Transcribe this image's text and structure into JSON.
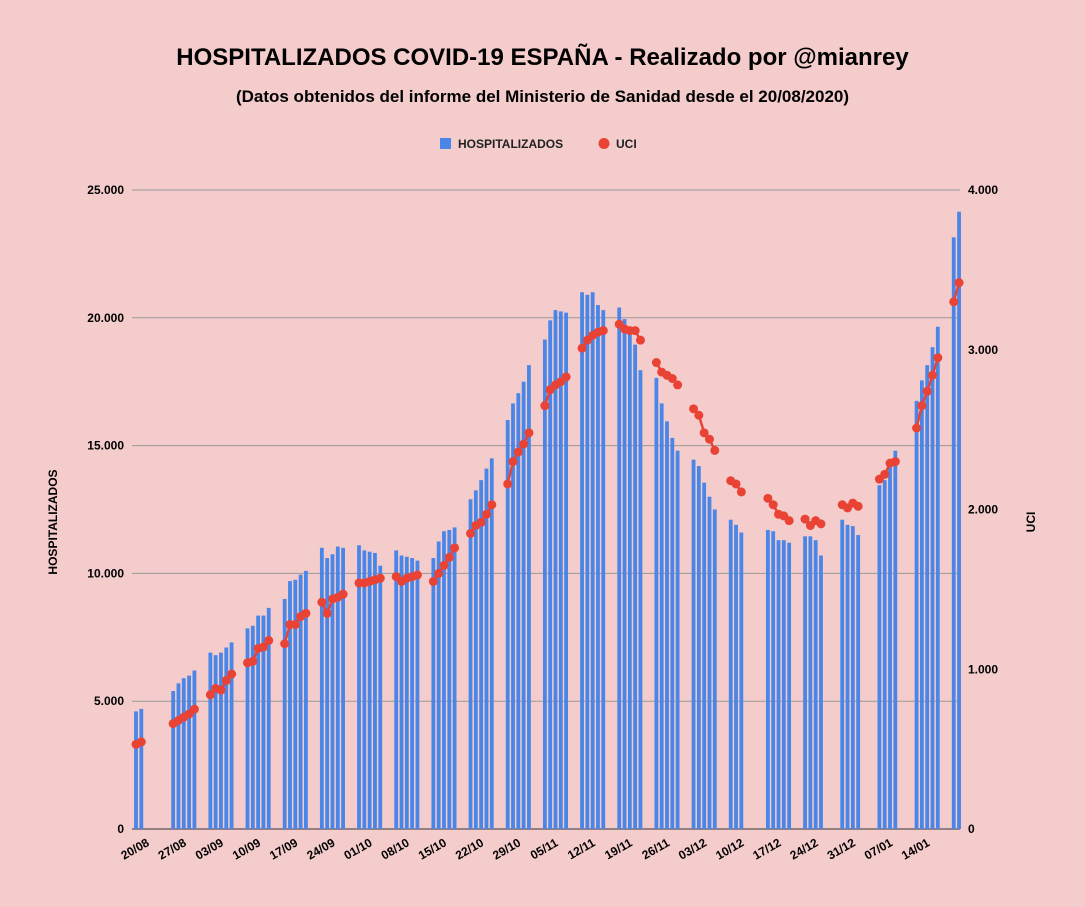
{
  "chart_data": {
    "type": "bar",
    "title": "HOSPITALIZADOS COVID-19 ESPAÑA - Realizado por @mianrey",
    "subtitle": "(Datos obtenidos del informe del Ministerio de Sanidad desde el 20/08/2020)",
    "ylabel_left": "HOSPITALIZADOS",
    "ylabel_right": "UCI",
    "ylim_left": [
      0,
      25000
    ],
    "ylim_right": [
      0,
      4000
    ],
    "yticks_left": [
      "0",
      "5.000",
      "10.000",
      "15.000",
      "20.000",
      "25.000"
    ],
    "yticks_right": [
      "0",
      "1.000",
      "2.000",
      "3.000",
      "4.000"
    ],
    "xtick_labels": [
      "20/08",
      "27/08",
      "03/09",
      "10/09",
      "17/09",
      "24/09",
      "01/10",
      "08/10",
      "15/10",
      "22/10",
      "29/10",
      "05/11",
      "12/11",
      "19/11",
      "26/11",
      "03/12",
      "10/12",
      "17/12",
      "24/12",
      "31/12",
      "07/01",
      "14/01"
    ],
    "legend_position": "top",
    "grid": true,
    "colors": {
      "bar": "#4a86e8",
      "line": "#e94335",
      "background": "#f4cccc",
      "grid": "#999999"
    },
    "series": [
      {
        "name": "HOSPITALIZADOS",
        "kind": "bar",
        "axis": "left"
      },
      {
        "name": "UCI",
        "kind": "line",
        "axis": "right"
      }
    ],
    "weeks": [
      {
        "hosp": [
          4600,
          4700,
          null,
          null,
          null
        ],
        "uci": [
          530,
          545,
          null,
          null,
          null
        ]
      },
      {
        "hosp": [
          5400,
          5700,
          5900,
          6000,
          6200
        ],
        "uci": [
          660,
          680,
          700,
          720,
          750
        ]
      },
      {
        "hosp": [
          6900,
          6800,
          6900,
          7100,
          7300
        ],
        "uci": [
          840,
          880,
          870,
          930,
          970
        ]
      },
      {
        "hosp": [
          7850,
          7950,
          8350,
          8350,
          8650
        ],
        "uci": [
          1040,
          1050,
          1130,
          1140,
          1180
        ]
      },
      {
        "hosp": [
          9000,
          9700,
          9750,
          9950,
          10100
        ],
        "uci": [
          1160,
          1280,
          1280,
          1330,
          1350
        ]
      },
      {
        "hosp": [
          11000,
          10600,
          10750,
          11050,
          11000
        ],
        "uci": [
          1420,
          1350,
          1440,
          1450,
          1470
        ]
      },
      {
        "hosp": [
          11100,
          10900,
          10850,
          10800,
          10300
        ],
        "uci": [
          1540,
          1540,
          1550,
          1560,
          1570
        ]
      },
      {
        "hosp": [
          10900,
          10700,
          10650,
          10600,
          10500
        ],
        "uci": [
          1580,
          1550,
          1570,
          1580,
          1590
        ]
      },
      {
        "hosp": [
          10600,
          11250,
          11650,
          11700,
          11800
        ],
        "uci": [
          1550,
          1600,
          1650,
          1700,
          1760
        ]
      },
      {
        "hosp": [
          12900,
          13250,
          13650,
          14100,
          14500
        ],
        "uci": [
          1850,
          1900,
          1920,
          1970,
          2030
        ]
      },
      {
        "hosp": [
          16000,
          16650,
          17050,
          17500,
          18150
        ],
        "uci": [
          2160,
          2300,
          2360,
          2410,
          2480
        ]
      },
      {
        "hosp": [
          19150,
          19900,
          20300,
          20250,
          20200
        ],
        "uci": [
          2650,
          2750,
          2780,
          2800,
          2830
        ]
      },
      {
        "hosp": [
          21000,
          20900,
          21000,
          20500,
          20300
        ],
        "uci": [
          3010,
          3060,
          3090,
          3110,
          3120
        ]
      },
      {
        "hosp": [
          20400,
          19950,
          19400,
          18950,
          17950
        ],
        "uci": [
          3160,
          3130,
          3120,
          3120,
          3060
        ]
      },
      {
        "hosp": [
          17650,
          16650,
          15950,
          15300,
          14800
        ],
        "uci": [
          2920,
          2860,
          2840,
          2820,
          2780
        ]
      },
      {
        "hosp": [
          14450,
          14200,
          13550,
          13000,
          12500
        ],
        "uci": [
          2630,
          2590,
          2480,
          2440,
          2370
        ]
      },
      {
        "hosp": [
          12100,
          11900,
          11600,
          null,
          null
        ],
        "uci": [
          2180,
          2160,
          2110,
          null,
          null
        ]
      },
      {
        "hosp": [
          11700,
          11650,
          11300,
          11300,
          11200
        ],
        "uci": [
          2070,
          2030,
          1970,
          1960,
          1930
        ]
      },
      {
        "hosp": [
          11450,
          11450,
          11300,
          10700,
          null
        ],
        "uci": [
          1940,
          1900,
          1930,
          1910,
          null
        ]
      },
      {
        "hosp": [
          12100,
          11900,
          11850,
          11500,
          null
        ],
        "uci": [
          2030,
          2010,
          2040,
          2020,
          null
        ]
      },
      {
        "hosp": [
          13450,
          13650,
          14450,
          14800,
          null
        ],
        "uci": [
          2190,
          2220,
          2290,
          2300,
          null
        ]
      },
      {
        "hosp": [
          16750,
          17550,
          18150,
          18850,
          19650
        ],
        "uci": [
          2510,
          2650,
          2740,
          2840,
          2950
        ]
      },
      {
        "hosp": [
          23150,
          24150,
          null,
          null,
          null
        ],
        "uci": [
          3300,
          3420,
          null,
          null,
          null
        ]
      }
    ]
  }
}
